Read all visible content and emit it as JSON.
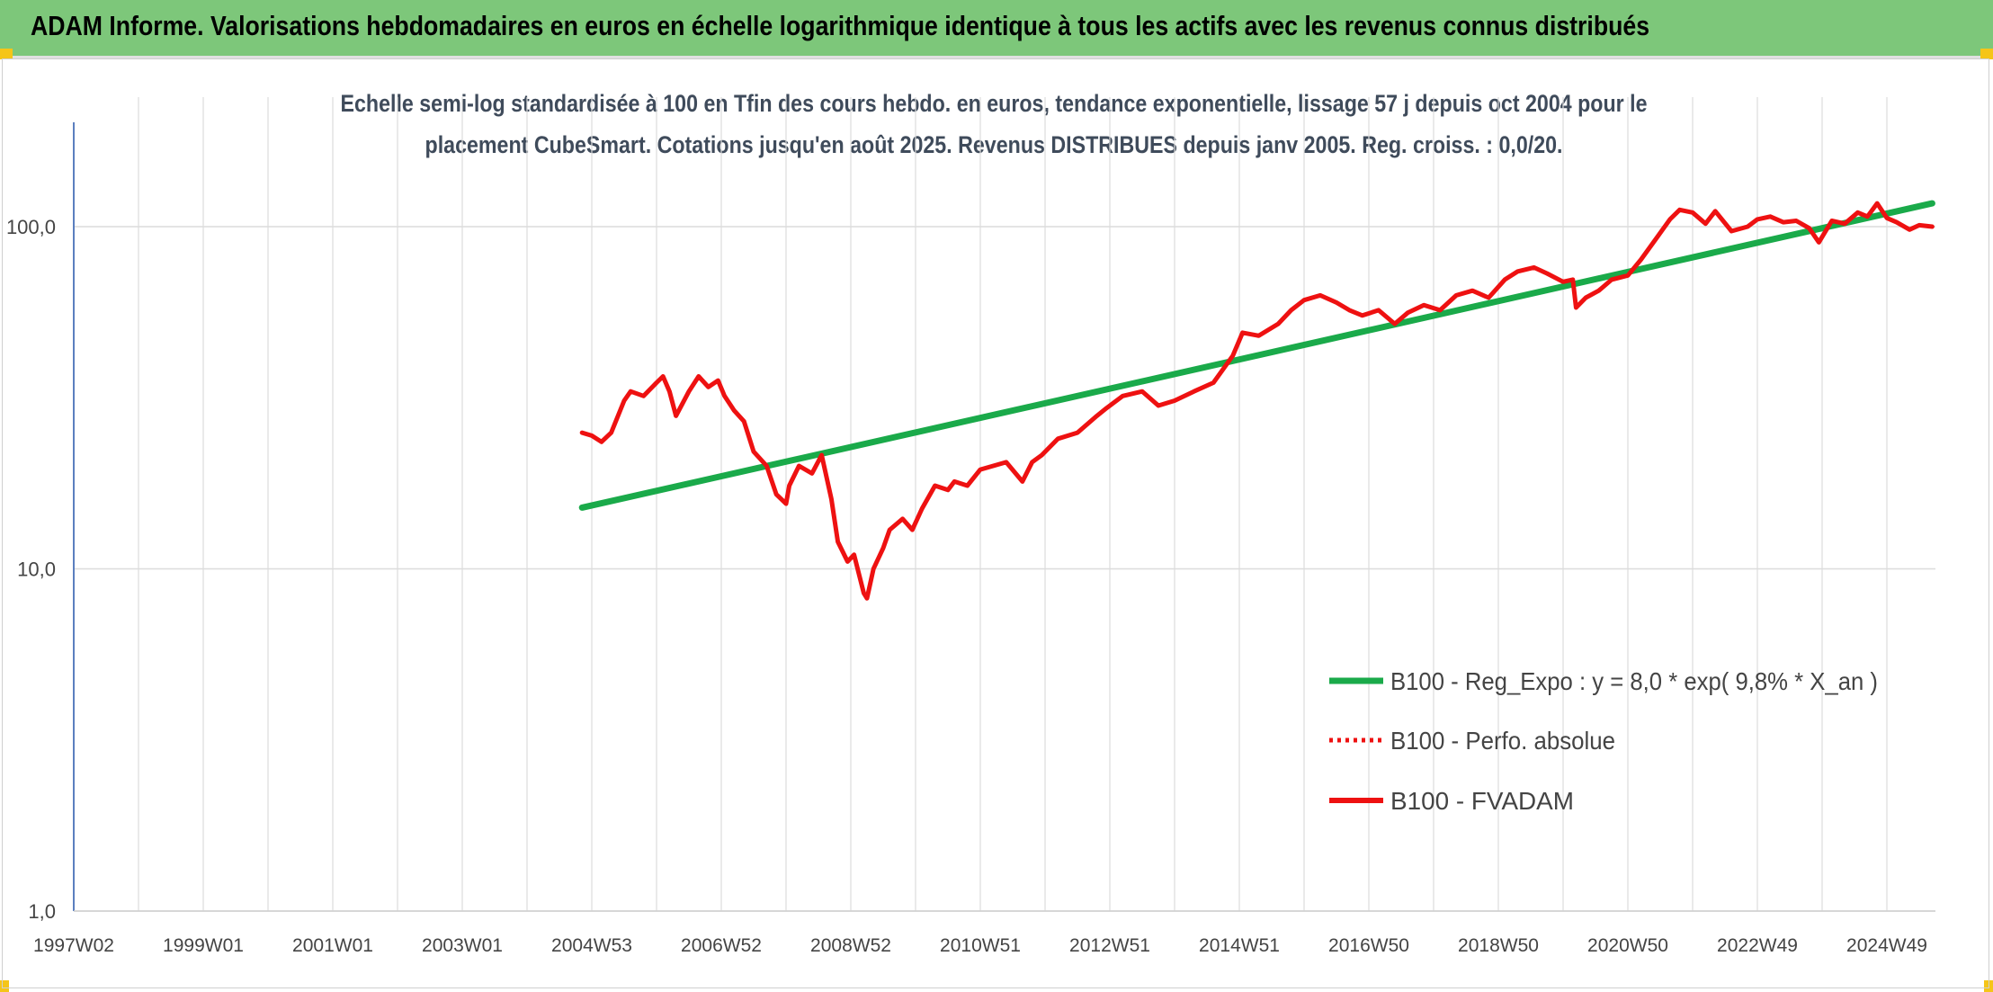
{
  "banner": {
    "title": "ADAM Informe. Valorisations hebdomadaires en euros en échelle logarithmique identique à tous les actifs avec les revenus connus distribués"
  },
  "colors": {
    "banner_bg": "#7dc77a",
    "regression": "#1aaa4a",
    "fvadam": "#ee1111",
    "perfo": "#ee1111",
    "grid": "#dcdcdc"
  },
  "chart_data": {
    "type": "line",
    "title_lines": [
      "Echelle semi-log standardisée à 100 en Tfin des cours hebdo. en euros, tendance exponentielle, lissage 57 j depuis oct 2004 pour le",
      "placement CubeSmart. Cotations jusqu'en août 2025. Revenus DISTRIBUES depuis janv 2005. Reg. croiss. : 0,0/20."
    ],
    "y_scale": "log",
    "ylim": [
      1,
      200
    ],
    "xlim": [
      1997.0,
      2025.75
    ],
    "y_ticks": [
      {
        "value": 1,
        "label": "1,0"
      },
      {
        "value": 10,
        "label": "10,0"
      },
      {
        "value": 100,
        "label": "100,0"
      }
    ],
    "x_ticks": [
      {
        "value": 1997.0,
        "label": "1997W02"
      },
      {
        "value": 1999.0,
        "label": "1999W01"
      },
      {
        "value": 2001.0,
        "label": "2001W01"
      },
      {
        "value": 2003.0,
        "label": "2003W01"
      },
      {
        "value": 2005.0,
        "label": "2004W53"
      },
      {
        "value": 2007.0,
        "label": "2006W52"
      },
      {
        "value": 2009.0,
        "label": "2008W52"
      },
      {
        "value": 2011.0,
        "label": "2010W51"
      },
      {
        "value": 2013.0,
        "label": "2012W51"
      },
      {
        "value": 2015.0,
        "label": "2014W51"
      },
      {
        "value": 2017.0,
        "label": "2016W50"
      },
      {
        "value": 2019.0,
        "label": "2018W50"
      },
      {
        "value": 2021.0,
        "label": "2020W50"
      },
      {
        "value": 2023.0,
        "label": "2022W49"
      },
      {
        "value": 2025.0,
        "label": "2024W49"
      }
    ],
    "legend_position": "bottom-right",
    "series": [
      {
        "name": "B100 - Reg_Expo : y = 8,0 * exp( 9,8% *  X_an )",
        "style": "solid-thick",
        "x": [
          2004.85,
          2025.7
        ],
        "y": [
          15.1,
          117.0
        ]
      },
      {
        "name": "B100 - Perfo. absolue",
        "style": "dotted",
        "x": [],
        "y": []
      },
      {
        "name": "B100 - FVADAM",
        "style": "solid",
        "x": [
          2004.85,
          2005.0,
          2005.15,
          2005.3,
          2005.5,
          2005.6,
          2005.8,
          2006.0,
          2006.1,
          2006.2,
          2006.3,
          2006.5,
          2006.65,
          2006.8,
          2006.95,
          2007.05,
          2007.2,
          2007.35,
          2007.5,
          2007.7,
          2007.85,
          2008.0,
          2008.05,
          2008.2,
          2008.4,
          2008.55,
          2008.7,
          2008.8,
          2008.95,
          2009.05,
          2009.2,
          2009.25,
          2009.35,
          2009.5,
          2009.6,
          2009.8,
          2009.95,
          2010.1,
          2010.3,
          2010.5,
          2010.6,
          2010.8,
          2011.0,
          2011.2,
          2011.4,
          2011.65,
          2011.8,
          2011.95,
          2012.2,
          2012.5,
          2012.8,
          2012.95,
          2013.2,
          2013.5,
          2013.75,
          2014.0,
          2014.3,
          2014.6,
          2014.9,
          2015.05,
          2015.3,
          2015.6,
          2015.8,
          2016.0,
          2016.25,
          2016.5,
          2016.7,
          2016.9,
          2017.15,
          2017.4,
          2017.6,
          2017.85,
          2018.1,
          2018.35,
          2018.6,
          2018.85,
          2019.1,
          2019.3,
          2019.55,
          2019.75,
          2020.0,
          2020.15,
          2020.2,
          2020.35,
          2020.55,
          2020.75,
          2021.0,
          2021.2,
          2021.45,
          2021.65,
          2021.8,
          2022.0,
          2022.2,
          2022.35,
          2022.6,
          2022.85,
          2023.0,
          2023.2,
          2023.4,
          2023.6,
          2023.8,
          2023.95,
          2024.15,
          2024.35,
          2024.55,
          2024.7,
          2024.85,
          2025.0,
          2025.15,
          2025.35,
          2025.5,
          2025.7
        ],
        "y": [
          25.0,
          24.5,
          23.5,
          25.0,
          31.0,
          33.0,
          32.0,
          35.0,
          36.5,
          33.0,
          28.0,
          33.0,
          36.5,
          34.0,
          35.5,
          32.0,
          29.0,
          27.0,
          22.0,
          20.0,
          16.5,
          15.5,
          17.5,
          20.0,
          19.0,
          21.5,
          16.0,
          12.0,
          10.5,
          11.0,
          8.5,
          8.2,
          10.0,
          11.5,
          13.0,
          14.0,
          13.0,
          15.0,
          17.5,
          17.0,
          18.0,
          17.5,
          19.5,
          20.0,
          20.5,
          18.0,
          20.5,
          21.5,
          24.0,
          25.0,
          28.0,
          29.5,
          32.0,
          33.0,
          30.0,
          31.0,
          33.0,
          35.0,
          42.0,
          49.0,
          48.0,
          52.0,
          57.0,
          61.0,
          63.0,
          60.0,
          57.0,
          55.0,
          57.0,
          52.0,
          56.0,
          59.0,
          57.0,
          63.0,
          65.0,
          62.0,
          70.0,
          74.0,
          76.0,
          73.0,
          69.0,
          70.0,
          58.0,
          62.0,
          65.0,
          70.0,
          72.0,
          80.0,
          93.0,
          105.0,
          112.0,
          110.0,
          102.0,
          111.0,
          97.0,
          100.0,
          105.0,
          107.0,
          103.0,
          104.0,
          99.0,
          90.0,
          104.0,
          102.0,
          110.0,
          107.0,
          117.0,
          106.0,
          103.0,
          98.0,
          101.0,
          100.0
        ]
      }
    ]
  }
}
